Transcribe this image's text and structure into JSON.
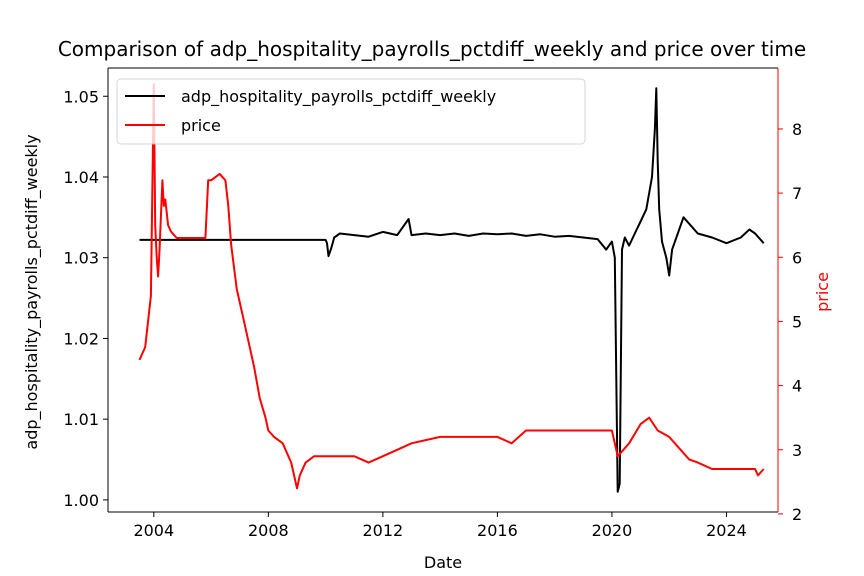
{
  "chart_data": {
    "type": "line",
    "title": "Comparison of adp_hospitality_payrolls_pctdiff_weekly and price over time",
    "xlabel": "Date",
    "ylabel_left": "adp_hospitality_payrolls_pctdiff_weekly",
    "ylabel_right": "price",
    "xlim": [
      2002.4,
      2025.8
    ],
    "ylim_left": [
      0.9985,
      1.0535
    ],
    "ylim_right": [
      2.03,
      8.95
    ],
    "x_ticks": [
      2004,
      2008,
      2012,
      2016,
      2020,
      2024
    ],
    "x_tick_labels": [
      "2004",
      "2008",
      "2012",
      "2016",
      "2020",
      "2024"
    ],
    "y_left_ticks": [
      1.0,
      1.01,
      1.02,
      1.03,
      1.04,
      1.05
    ],
    "y_left_tick_labels": [
      "1.00",
      "1.01",
      "1.02",
      "1.03",
      "1.04",
      "1.05"
    ],
    "y_right_ticks": [
      2,
      3,
      4,
      5,
      6,
      7,
      8
    ],
    "y_right_tick_labels": [
      "2",
      "3",
      "4",
      "5",
      "6",
      "7",
      "8"
    ],
    "legend_position": "top-left",
    "grid": false,
    "colors": {
      "left_axis": "#000000",
      "right_axis": "#ff0000"
    },
    "series": [
      {
        "name": "adp_hospitality_payrolls_pctdiff_weekly",
        "axis": "left",
        "color": "#000000",
        "x": [
          2003.5,
          2005.0,
          2007.0,
          2009.0,
          2010.0,
          2010.05,
          2010.1,
          2010.2,
          2010.3,
          2010.5,
          2011.0,
          2011.5,
          2012.0,
          2012.5,
          2012.9,
          2013.0,
          2013.5,
          2014.0,
          2014.5,
          2015.0,
          2015.5,
          2016.0,
          2016.5,
          2017.0,
          2017.5,
          2018.0,
          2018.5,
          2019.0,
          2019.5,
          2019.8,
          2020.0,
          2020.1,
          2020.2,
          2020.27,
          2020.35,
          2020.45,
          2020.6,
          2020.8,
          2021.0,
          2021.2,
          2021.4,
          2021.5,
          2021.55,
          2021.6,
          2021.65,
          2021.75,
          2021.9,
          2022.0,
          2022.1,
          2022.3,
          2022.5,
          2023.0,
          2023.5,
          2024.0,
          2024.5,
          2024.8,
          2025.0,
          2025.3
        ],
        "y": [
          1.0322,
          1.0322,
          1.0322,
          1.0322,
          1.0322,
          1.0318,
          1.0302,
          1.0312,
          1.0325,
          1.033,
          1.0328,
          1.0326,
          1.0332,
          1.0328,
          1.0348,
          1.0328,
          1.033,
          1.0328,
          1.033,
          1.0327,
          1.033,
          1.0329,
          1.033,
          1.0327,
          1.0329,
          1.0326,
          1.0327,
          1.0325,
          1.0323,
          1.031,
          1.032,
          1.03,
          1.001,
          1.002,
          1.031,
          1.0325,
          1.0315,
          1.033,
          1.0345,
          1.036,
          1.04,
          1.046,
          1.051,
          1.042,
          1.036,
          1.032,
          1.03,
          1.0278,
          1.031,
          1.033,
          1.035,
          1.033,
          1.0325,
          1.0318,
          1.0325,
          1.0335,
          1.033,
          1.0318
        ]
      },
      {
        "name": "price",
        "axis": "right",
        "color": "#ff0000",
        "x": [
          2003.5,
          2003.7,
          2003.9,
          2004.0,
          2004.05,
          2004.1,
          2004.15,
          2004.2,
          2004.3,
          2004.35,
          2004.4,
          2004.5,
          2004.6,
          2004.8,
          2005.0,
          2005.3,
          2005.5,
          2005.8,
          2005.9,
          2006.0,
          2006.3,
          2006.5,
          2006.6,
          2006.7,
          2006.9,
          2007.1,
          2007.3,
          2007.5,
          2007.7,
          2007.9,
          2008.0,
          2008.2,
          2008.5,
          2008.8,
          2009.0,
          2009.1,
          2009.3,
          2009.6,
          2010.0,
          2010.5,
          2011.0,
          2011.5,
          2012.0,
          2012.5,
          2013.0,
          2014.0,
          2015.0,
          2016.0,
          2016.5,
          2017.0,
          2018.0,
          2019.0,
          2019.5,
          2020.0,
          2020.2,
          2020.4,
          2020.6,
          2021.0,
          2021.3,
          2021.6,
          2022.0,
          2022.4,
          2022.7,
          2023.0,
          2023.5,
          2024.0,
          2024.5,
          2024.8,
          2025.0,
          2025.1,
          2025.3
        ],
        "y": [
          4.4,
          4.6,
          5.4,
          8.7,
          6.5,
          6.0,
          5.7,
          6.1,
          7.2,
          6.8,
          6.9,
          6.5,
          6.4,
          6.3,
          6.3,
          6.3,
          6.3,
          6.3,
          7.2,
          7.2,
          7.3,
          7.2,
          6.8,
          6.2,
          5.5,
          5.1,
          4.7,
          4.3,
          3.8,
          3.5,
          3.3,
          3.2,
          3.1,
          2.8,
          2.4,
          2.6,
          2.8,
          2.9,
          2.9,
          2.9,
          2.9,
          2.8,
          2.9,
          3.0,
          3.1,
          3.2,
          3.2,
          3.2,
          3.1,
          3.3,
          3.3,
          3.3,
          3.3,
          3.3,
          2.9,
          3.0,
          3.1,
          3.4,
          3.5,
          3.3,
          3.2,
          3.0,
          2.85,
          2.8,
          2.7,
          2.7,
          2.7,
          2.7,
          2.7,
          2.6,
          2.7
        ]
      }
    ]
  }
}
